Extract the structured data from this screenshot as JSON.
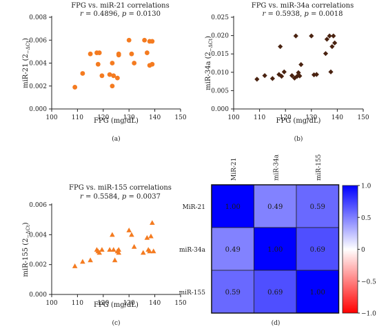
{
  "chart_data": [
    {
      "type": "scatter",
      "panel": "(a)",
      "title": "FPG vs. miR-21 correlations",
      "stats": {
        "r_label": "r",
        "r": "0.4896",
        "p_label": "p",
        "p": "0.0130"
      },
      "xlabel": "FPG (mg/dL)",
      "ylabel": "miR-21 (2",
      "ylabel_sup": "−ΔCt",
      "ylabel_end": ")",
      "xlim": [
        100,
        150
      ],
      "ylim": [
        0,
        0.008
      ],
      "xticks": [
        "100",
        "110",
        "120",
        "130",
        "140",
        "150"
      ],
      "yticks": [
        "0.000",
        "0.002",
        "0.004",
        "0.006",
        "0.008"
      ],
      "marker": "circle",
      "color": "#f47b20",
      "points": [
        [
          109,
          0.0019
        ],
        [
          112,
          0.0031
        ],
        [
          115,
          0.0048
        ],
        [
          117.5,
          0.0049
        ],
        [
          118,
          0.0039
        ],
        [
          118.5,
          0.0049
        ],
        [
          119.5,
          0.0029
        ],
        [
          122.5,
          0.003
        ],
        [
          123.5,
          0.002
        ],
        [
          123.5,
          0.004
        ],
        [
          124,
          0.0029
        ],
        [
          125.5,
          0.0027
        ],
        [
          126,
          0.0047
        ],
        [
          126,
          0.0048
        ],
        [
          130,
          0.006
        ],
        [
          131,
          0.0048
        ],
        [
          132,
          0.004
        ],
        [
          136,
          0.006
        ],
        [
          137,
          0.0049
        ],
        [
          138,
          0.0059
        ],
        [
          138,
          0.0038
        ],
        [
          139,
          0.0059
        ],
        [
          139,
          0.0039
        ]
      ]
    },
    {
      "type": "scatter",
      "panel": "(b)",
      "title": "FPG vs. miR-34a correlations",
      "stats": {
        "r_label": "r",
        "r": "0.5938",
        "p_label": "p",
        "p": "0.0018"
      },
      "xlabel": "FPG (mg/dL)",
      "ylabel": "miR-34a (2",
      "ylabel_sup": "−ΔCt",
      "ylabel_end": ")",
      "xlim": [
        100,
        150
      ],
      "ylim": [
        0,
        0.025
      ],
      "xticks": [
        "100",
        "110",
        "120",
        "130",
        "140",
        "150"
      ],
      "yticks": [
        "0.000",
        "0.005",
        "0.010",
        "0.015",
        "0.020",
        "0.025"
      ],
      "marker": "diamond",
      "color": "#4a2311",
      "points": [
        [
          109,
          0.0081
        ],
        [
          112,
          0.0091
        ],
        [
          115,
          0.0083
        ],
        [
          117.5,
          0.0094
        ],
        [
          118,
          0.017
        ],
        [
          118.5,
          0.0089
        ],
        [
          119.5,
          0.0101
        ],
        [
          122.5,
          0.0091
        ],
        [
          123.5,
          0.0084
        ],
        [
          124,
          0.0199
        ],
        [
          124.5,
          0.0089
        ],
        [
          125,
          0.0099
        ],
        [
          125.5,
          0.009
        ],
        [
          126,
          0.0121
        ],
        [
          130,
          0.0199
        ],
        [
          131,
          0.0093
        ],
        [
          132,
          0.0094
        ],
        [
          135.5,
          0.0151
        ],
        [
          136,
          0.019
        ],
        [
          137,
          0.0199
        ],
        [
          137.5,
          0.0101
        ],
        [
          138,
          0.017
        ],
        [
          138.5,
          0.0199
        ],
        [
          139,
          0.018
        ]
      ]
    },
    {
      "type": "scatter",
      "panel": "(c)",
      "title": "FPG vs. miR-155 correlations",
      "stats": {
        "r_label": "r",
        "r": "0.5584",
        "p_label": "p",
        "p": "0.0037"
      },
      "xlabel": "FPG (mg/dL)",
      "ylabel": "miR-155 (2",
      "ylabel_sup": "−ΔCt",
      "ylabel_end": ")",
      "xlim": [
        100,
        150
      ],
      "ylim": [
        0,
        0.006
      ],
      "xticks": [
        "100",
        "110",
        "120",
        "130",
        "140",
        "150"
      ],
      "yticks": [
        "0.000",
        "0.002",
        "0.004",
        "0.006"
      ],
      "marker": "triangle",
      "color": "#f47b20",
      "points": [
        [
          109,
          0.0019
        ],
        [
          112,
          0.0022
        ],
        [
          115,
          0.0023
        ],
        [
          117.5,
          0.003
        ],
        [
          118,
          0.0029
        ],
        [
          118.5,
          0.0028
        ],
        [
          119.5,
          0.003
        ],
        [
          122.5,
          0.003
        ],
        [
          123.5,
          0.004
        ],
        [
          124,
          0.003
        ],
        [
          124.5,
          0.0023
        ],
        [
          125.5,
          0.0029
        ],
        [
          126,
          0.0028
        ],
        [
          126,
          0.003
        ],
        [
          130,
          0.0043
        ],
        [
          131,
          0.004
        ],
        [
          132,
          0.0032
        ],
        [
          135.5,
          0.0028
        ],
        [
          137,
          0.0038
        ],
        [
          137.5,
          0.003
        ],
        [
          138,
          0.0029
        ],
        [
          138.5,
          0.0039
        ],
        [
          139,
          0.0048
        ],
        [
          139.5,
          0.0029
        ]
      ]
    },
    {
      "type": "heatmap",
      "panel": "(d)",
      "col_labels": [
        "MiR-21",
        "miR-34a",
        "miR-155"
      ],
      "row_labels": [
        "MiR-21",
        "miR-34a",
        "miR-155"
      ],
      "values": [
        [
          1.0,
          0.49,
          0.59
        ],
        [
          0.49,
          1.0,
          0.69
        ],
        [
          0.59,
          0.69,
          1.0
        ]
      ],
      "value_labels": [
        [
          "1.00",
          "0.49",
          "0.59"
        ],
        [
          "0.49",
          "1.00",
          "0.69"
        ],
        [
          "0.59",
          "0.69",
          "1.00"
        ]
      ],
      "colorbar_ticks": [
        "1.0",
        "0.5",
        "0",
        "−0.5",
        "−1.0"
      ],
      "colorbar_values": [
        1.0,
        0.5,
        0,
        -0.5,
        -1.0
      ],
      "colorscale": {
        "max": "#0000ff",
        "mid": "#ffffff",
        "min": "#ff0000"
      }
    }
  ]
}
